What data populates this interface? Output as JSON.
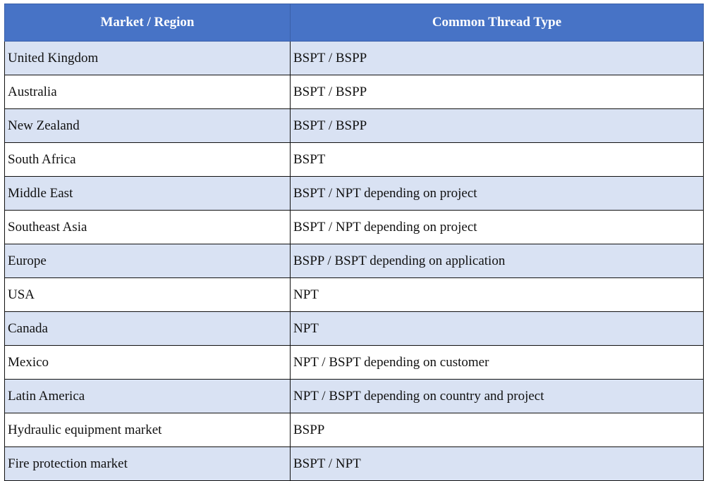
{
  "table": {
    "header": [
      "Market / Region",
      "Common Thread Type"
    ],
    "rows": [
      [
        "United Kingdom",
        "BSPT / BSPP"
      ],
      [
        "Australia",
        "BSPT / BSPP"
      ],
      [
        "New Zealand",
        "BSPT / BSPP"
      ],
      [
        "South Africa",
        "BSPT"
      ],
      [
        "Middle East",
        "BSPT / NPT depending on project"
      ],
      [
        "Southeast Asia",
        "BSPT / NPT depending on project"
      ],
      [
        "Europe",
        "BSPP / BSPT depending on application"
      ],
      [
        "USA",
        "NPT"
      ],
      [
        "Canada",
        "NPT"
      ],
      [
        "Mexico",
        "NPT / BSPT depending on customer"
      ],
      [
        "Latin America",
        "NPT / BSPT depending on country and project"
      ],
      [
        "Hydraulic equipment market",
        "BSPP"
      ],
      [
        "Fire protection market",
        "BSPT / NPT"
      ]
    ]
  }
}
